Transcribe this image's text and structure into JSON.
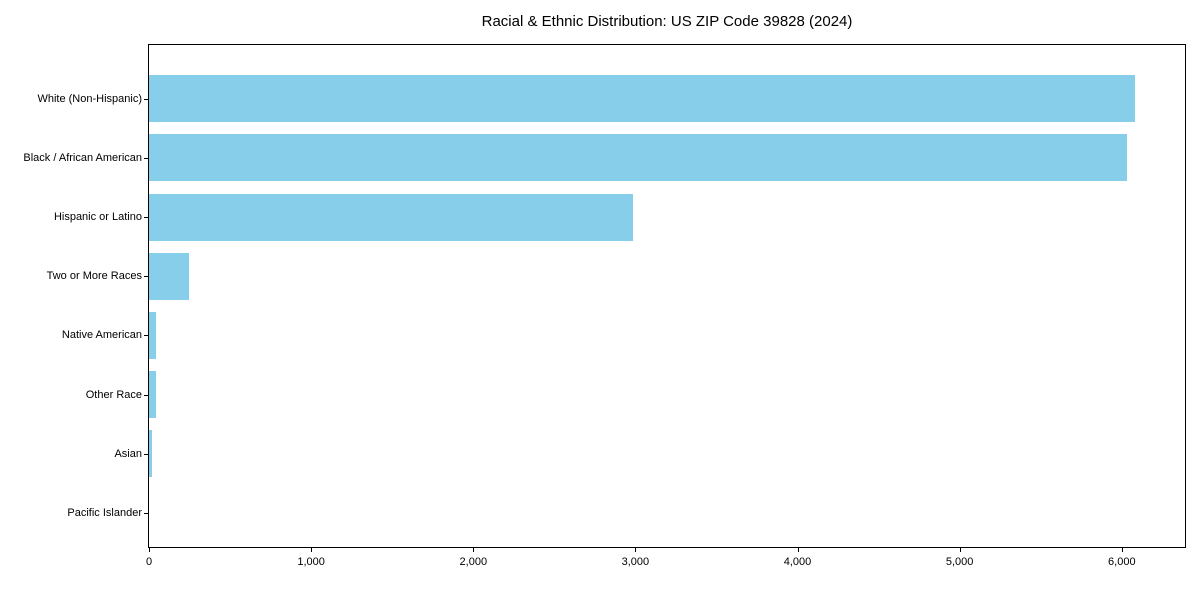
{
  "figure": {
    "background": "#ffffff",
    "title": "Racial & Ethnic Distribution: US ZIP Code 39828 (2024)"
  },
  "colors": {
    "bar": "#87CEEB",
    "axis": "#000000",
    "text": "#000000",
    "plot_background": "#ffffff"
  },
  "chart_data": {
    "type": "bar",
    "orientation": "horizontal",
    "title": "Racial & Ethnic Distribution: US ZIP Code 39828 (2024)",
    "xlabel": "",
    "ylabel": "",
    "categories": [
      "White (Non-Hispanic)",
      "Black / African American",
      "Hispanic or Latino",
      "Two or More Races",
      "Native American",
      "Other Race",
      "Asian",
      "Pacific Islander"
    ],
    "values": [
      6080,
      6030,
      2985,
      245,
      42,
      40,
      20,
      0
    ],
    "bar_color": "#87CEEB",
    "xlim": [
      0,
      6390
    ],
    "xticks": [
      0,
      1000,
      2000,
      3000,
      4000,
      5000,
      6000
    ],
    "xtick_labels": [
      "0",
      "1,000",
      "2,000",
      "3,000",
      "4,000",
      "5,000",
      "6,000"
    ],
    "grid": false,
    "legend": null
  }
}
